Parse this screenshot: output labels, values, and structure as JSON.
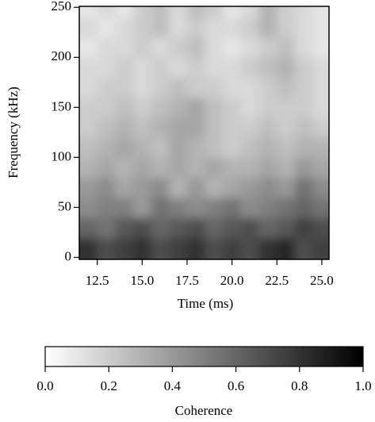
{
  "chart_data": {
    "type": "heatmap",
    "xlabel": "Time (ms)",
    "ylabel": "Frequency (kHz)",
    "x": [
      12,
      13,
      14,
      15,
      16,
      17,
      18,
      19,
      20,
      21,
      22,
      23,
      24,
      25
    ],
    "y": [
      10,
      30,
      50,
      70,
      90,
      110,
      130,
      150,
      170,
      190,
      210,
      230,
      250
    ],
    "z": [
      [
        0.8,
        0.7,
        0.75,
        0.8,
        0.7,
        0.75,
        0.8,
        0.7,
        0.75,
        0.7,
        0.8,
        0.85,
        0.7,
        0.75
      ],
      [
        0.6,
        0.55,
        0.65,
        0.7,
        0.6,
        0.65,
        0.7,
        0.6,
        0.65,
        0.7,
        0.6,
        0.65,
        0.75,
        0.7
      ],
      [
        0.45,
        0.5,
        0.5,
        0.4,
        0.55,
        0.5,
        0.45,
        0.5,
        0.55,
        0.45,
        0.5,
        0.55,
        0.6,
        0.55
      ],
      [
        0.4,
        0.45,
        0.35,
        0.4,
        0.45,
        0.3,
        0.4,
        0.3,
        0.35,
        0.4,
        0.45,
        0.4,
        0.55,
        0.45
      ],
      [
        0.3,
        0.35,
        0.3,
        0.35,
        0.3,
        0.35,
        0.3,
        0.35,
        0.3,
        0.3,
        0.35,
        0.3,
        0.4,
        0.35
      ],
      [
        0.25,
        0.3,
        0.35,
        0.3,
        0.25,
        0.35,
        0.3,
        0.25,
        0.2,
        0.25,
        0.3,
        0.25,
        0.3,
        0.3
      ],
      [
        0.2,
        0.25,
        0.3,
        0.25,
        0.3,
        0.35,
        0.35,
        0.25,
        0.2,
        0.2,
        0.25,
        0.2,
        0.25,
        0.2
      ],
      [
        0.2,
        0.2,
        0.25,
        0.2,
        0.25,
        0.3,
        0.35,
        0.25,
        0.2,
        0.15,
        0.2,
        0.2,
        0.2,
        0.15
      ],
      [
        0.15,
        0.2,
        0.2,
        0.15,
        0.2,
        0.25,
        0.2,
        0.2,
        0.15,
        0.15,
        0.2,
        0.25,
        0.2,
        0.15
      ],
      [
        0.15,
        0.15,
        0.2,
        0.15,
        0.2,
        0.15,
        0.2,
        0.15,
        0.15,
        0.2,
        0.25,
        0.3,
        0.2,
        0.15
      ],
      [
        0.1,
        0.15,
        0.15,
        0.2,
        0.15,
        0.2,
        0.25,
        0.15,
        0.1,
        0.15,
        0.2,
        0.25,
        0.15,
        0.1
      ],
      [
        0.15,
        0.1,
        0.15,
        0.2,
        0.25,
        0.15,
        0.2,
        0.15,
        0.15,
        0.2,
        0.3,
        0.2,
        0.15,
        0.1
      ],
      [
        0.1,
        0.15,
        0.1,
        0.2,
        0.25,
        0.15,
        0.25,
        0.2,
        0.1,
        0.15,
        0.3,
        0.2,
        0.15,
        0.1
      ]
    ],
    "xlim": [
      11.5,
      25.4
    ],
    "ylim": [
      -2,
      251
    ],
    "xticks": [
      12.5,
      {
        "value": 15,
        "label": "15.0"
      },
      17.5,
      {
        "value": 20,
        "label": "20.0"
      },
      22.5,
      {
        "value": 25,
        "label": "25.0"
      }
    ],
    "yticks": [
      0,
      50,
      100,
      150,
      200,
      250
    ],
    "colormap": [
      "#ffffff",
      "#000000"
    ],
    "colorbar": {
      "label": "Coherence",
      "lim": [
        0,
        1
      ],
      "ticks": [
        {
          "value": 0,
          "label": "0.0"
        },
        0.2,
        0.4,
        0.6,
        0.8,
        {
          "value": 1,
          "label": "1.0"
        }
      ]
    }
  }
}
